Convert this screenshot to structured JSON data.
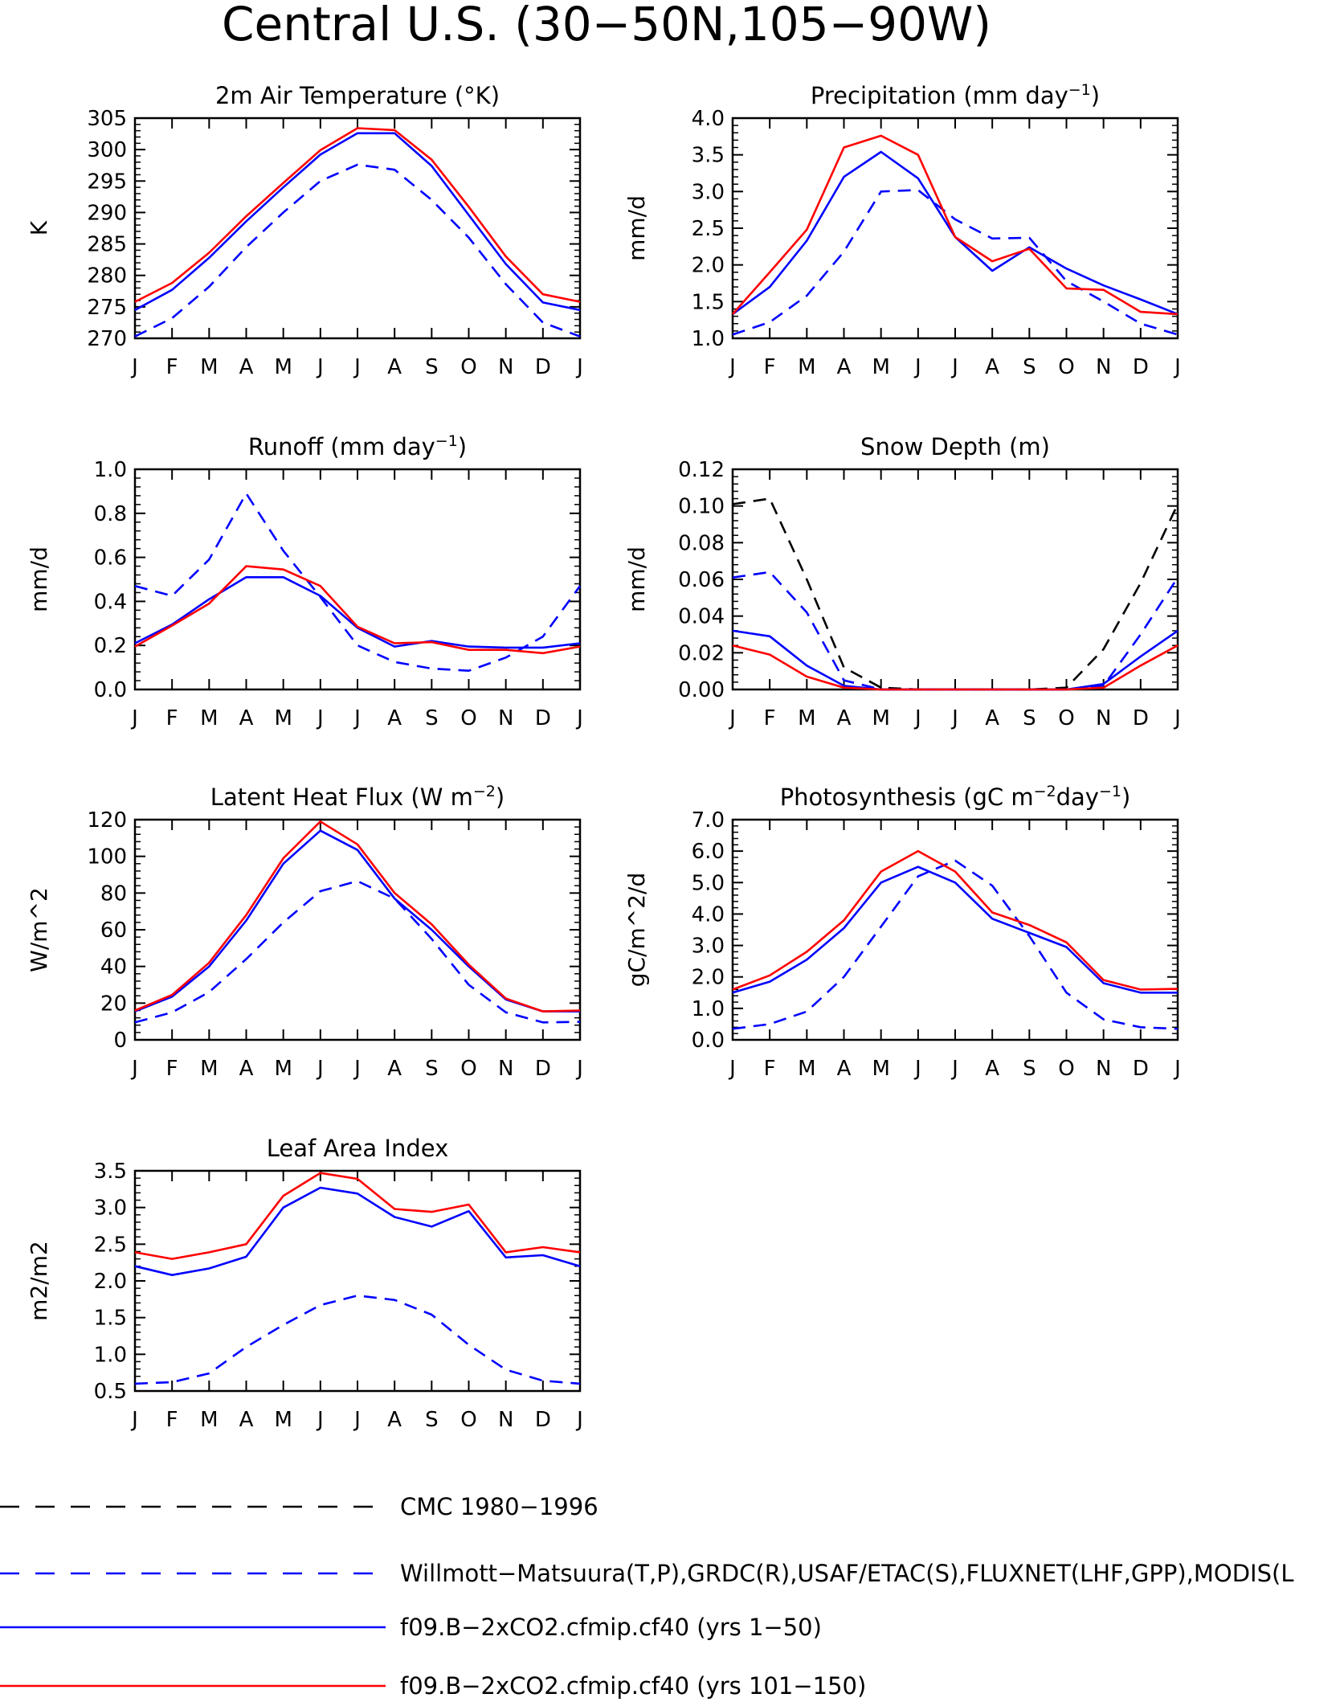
{
  "title": "Central U.S. (30−50N,105−90W)",
  "months": [
    "J",
    "F",
    "M",
    "A",
    "M",
    "J",
    "J",
    "A",
    "S",
    "O",
    "N",
    "D",
    "J"
  ],
  "colors": {
    "obs_cmc": "#000000",
    "obs": "#0000ff",
    "model1": "#0000ff",
    "model2": "#ff0000"
  },
  "legend": [
    {
      "label": "CMC 1980−1996",
      "color": "#000000",
      "dash": true
    },
    {
      "label": "Willmott−Matsuura(T,P),GRDC(R),USAF/ETAC(S),FLUXNET(LHF,GPP),MODIS(L",
      "color": "#0000ff",
      "dash": true
    },
    {
      "label": "f09.B−2xCO2.cfmip.cf40 (yrs 1−50)",
      "color": "#0000ff",
      "dash": false
    },
    {
      "label": "f09.B−2xCO2.cfmip.cf40 (yrs 101−150)",
      "color": "#ff0000",
      "dash": false
    }
  ],
  "chart_data": [
    {
      "type": "line",
      "title": "2m Air Temperature (°K)",
      "ylabel": "K",
      "ylim": [
        270,
        305
      ],
      "yticks": [
        270,
        275,
        280,
        285,
        290,
        295,
        300,
        305
      ],
      "ytick_labels": [
        "270",
        "275",
        "280",
        "285",
        "290",
        "295",
        "300",
        "305"
      ],
      "series": [
        {
          "style": "obs",
          "values": [
            270.3,
            273.2,
            278.2,
            284.5,
            290.0,
            295.0,
            297.6,
            296.8,
            292.0,
            286.0,
            278.6,
            272.5,
            270.3
          ]
        },
        {
          "style": "model1",
          "values": [
            274.5,
            277.7,
            282.8,
            288.6,
            294.0,
            299.2,
            302.6,
            302.6,
            297.4,
            289.6,
            281.8,
            275.7,
            274.5
          ]
        },
        {
          "style": "model2",
          "values": [
            275.8,
            278.8,
            283.6,
            289.4,
            294.7,
            299.9,
            303.4,
            303.1,
            298.4,
            290.9,
            283.0,
            277.0,
            275.8
          ]
        }
      ]
    },
    {
      "type": "line",
      "title": "Precipitation (mm day",
      "title_sup": "−1",
      "title_end": ")",
      "ylabel": "mm/d",
      "ylim": [
        1.0,
        4.0
      ],
      "yticks": [
        1.0,
        1.5,
        2.0,
        2.5,
        3.0,
        3.5,
        4.0
      ],
      "ytick_labels": [
        "1.0",
        "1.5",
        "2.0",
        "2.5",
        "3.0",
        "3.5",
        "4.0"
      ],
      "series": [
        {
          "style": "obs",
          "values": [
            1.05,
            1.22,
            1.58,
            2.18,
            3.0,
            3.02,
            2.62,
            2.36,
            2.37,
            1.78,
            1.5,
            1.2,
            1.05
          ]
        },
        {
          "style": "model1",
          "values": [
            1.33,
            1.7,
            2.33,
            3.2,
            3.54,
            3.18,
            2.38,
            1.92,
            2.24,
            1.95,
            1.72,
            1.53,
            1.33
          ]
        },
        {
          "style": "model2",
          "values": [
            1.33,
            1.9,
            2.48,
            3.6,
            3.76,
            3.5,
            2.38,
            2.05,
            2.22,
            1.68,
            1.66,
            1.36,
            1.33
          ]
        }
      ]
    },
    {
      "type": "line",
      "title": "Runoff (mm day",
      "title_sup": "−1",
      "title_end": ")",
      "ylabel": "mm/d",
      "ylim": [
        0.0,
        1.0
      ],
      "yticks": [
        0.0,
        0.2,
        0.4,
        0.6,
        0.8,
        1.0
      ],
      "ytick_labels": [
        "0.0",
        "0.2",
        "0.4",
        "0.6",
        "0.8",
        "1.0"
      ],
      "series": [
        {
          "style": "obs",
          "values": [
            0.47,
            0.425,
            0.59,
            0.89,
            0.63,
            0.42,
            0.2,
            0.125,
            0.095,
            0.085,
            0.145,
            0.24,
            0.47
          ]
        },
        {
          "style": "model1",
          "values": [
            0.21,
            0.295,
            0.41,
            0.51,
            0.51,
            0.425,
            0.28,
            0.195,
            0.22,
            0.195,
            0.19,
            0.19,
            0.21
          ]
        },
        {
          "style": "model2",
          "values": [
            0.195,
            0.29,
            0.39,
            0.56,
            0.545,
            0.47,
            0.285,
            0.21,
            0.215,
            0.18,
            0.18,
            0.165,
            0.195
          ]
        }
      ]
    },
    {
      "type": "line",
      "title": "Snow Depth (m)",
      "ylabel": "mm/d",
      "ylim": [
        0.0,
        0.12
      ],
      "yticks": [
        0.0,
        0.02,
        0.04,
        0.06,
        0.08,
        0.1,
        0.12
      ],
      "ytick_labels": [
        "0.00",
        "0.02",
        "0.04",
        "0.06",
        "0.08",
        "0.10",
        "0.12"
      ],
      "series": [
        {
          "style": "obs_cmc",
          "values": [
            0.101,
            0.104,
            0.06,
            0.012,
            0.001,
            0.0,
            0.0,
            0.0,
            0.0,
            0.001,
            0.022,
            0.058,
            0.101
          ]
        },
        {
          "style": "obs",
          "values": [
            0.061,
            0.064,
            0.042,
            0.005,
            0.0,
            0.0,
            0.0,
            0.0,
            0.0,
            0.0,
            0.002,
            0.03,
            0.061
          ]
        },
        {
          "style": "model1",
          "values": [
            0.032,
            0.029,
            0.013,
            0.002,
            0.0,
            0.0,
            0.0,
            0.0,
            0.0,
            0.0,
            0.003,
            0.018,
            0.032
          ]
        },
        {
          "style": "model2",
          "values": [
            0.024,
            0.019,
            0.007,
            0.001,
            0.0,
            0.0,
            0.0,
            0.0,
            0.0,
            0.0,
            0.001,
            0.013,
            0.024
          ]
        }
      ]
    },
    {
      "type": "line",
      "title": "Latent Heat Flux (W m",
      "title_sup": "−2",
      "title_end": ")",
      "ylabel": "W/m^2",
      "ylim": [
        0,
        120
      ],
      "yticks": [
        0,
        20,
        40,
        60,
        80,
        100,
        120
      ],
      "ytick_labels": [
        "0",
        "20",
        "40",
        "60",
        "80",
        "100",
        "120"
      ],
      "series": [
        {
          "style": "obs",
          "values": [
            9.5,
            15,
            26,
            44,
            64,
            81,
            86.5,
            77,
            55,
            30,
            15,
            9.5,
            9.8
          ]
        },
        {
          "style": "model1",
          "values": [
            15.5,
            23.5,
            40,
            65,
            96,
            114,
            103.5,
            77,
            60,
            40,
            22,
            15.5,
            15.5
          ]
        },
        {
          "style": "model2",
          "values": [
            16,
            24.5,
            42,
            68,
            99,
            119,
            106.5,
            80,
            63,
            41,
            22.5,
            15.5,
            16
          ]
        }
      ]
    },
    {
      "type": "line",
      "title": "Photosynthesis (gC m",
      "title_sup": "−2",
      "title_mid": "day",
      "title_sup2": "−1",
      "title_end": ")",
      "ylabel": "gC/m^2/d",
      "ylim": [
        0.0,
        7.0
      ],
      "yticks": [
        0.0,
        1.0,
        2.0,
        3.0,
        4.0,
        5.0,
        6.0,
        7.0
      ],
      "ytick_labels": [
        "0.0",
        "1.0",
        "2.0",
        "3.0",
        "4.0",
        "5.0",
        "6.0",
        "7.0"
      ],
      "series": [
        {
          "style": "obs",
          "values": [
            0.35,
            0.5,
            0.9,
            2.0,
            3.6,
            5.2,
            5.7,
            4.9,
            3.3,
            1.5,
            0.65,
            0.4,
            0.35
          ]
        },
        {
          "style": "model1",
          "values": [
            1.5,
            1.85,
            2.55,
            3.55,
            5.0,
            5.5,
            5.0,
            3.85,
            3.4,
            2.95,
            1.8,
            1.5,
            1.5
          ]
        },
        {
          "style": "model2",
          "values": [
            1.6,
            2.05,
            2.8,
            3.8,
            5.35,
            6.0,
            5.35,
            4.05,
            3.65,
            3.1,
            1.9,
            1.6,
            1.62
          ]
        }
      ]
    },
    {
      "type": "line",
      "title": "Leaf Area Index",
      "ylabel": "m2/m2",
      "ylim": [
        0.5,
        3.5
      ],
      "yticks": [
        0.5,
        1.0,
        1.5,
        2.0,
        2.5,
        3.0,
        3.5
      ],
      "ytick_labels": [
        "0.5",
        "1.0",
        "1.5",
        "2.0",
        "2.5",
        "3.0",
        "3.5"
      ],
      "series": [
        {
          "style": "obs",
          "values": [
            0.6,
            0.62,
            0.74,
            1.1,
            1.4,
            1.67,
            1.8,
            1.74,
            1.54,
            1.13,
            0.79,
            0.64,
            0.6
          ]
        },
        {
          "style": "model1",
          "values": [
            2.2,
            2.08,
            2.17,
            2.33,
            3.0,
            3.27,
            3.19,
            2.87,
            2.74,
            2.95,
            2.32,
            2.35,
            2.2
          ]
        },
        {
          "style": "model2",
          "values": [
            2.39,
            2.3,
            2.39,
            2.5,
            3.16,
            3.47,
            3.39,
            2.98,
            2.94,
            3.04,
            2.39,
            2.46,
            2.39
          ]
        }
      ]
    }
  ]
}
